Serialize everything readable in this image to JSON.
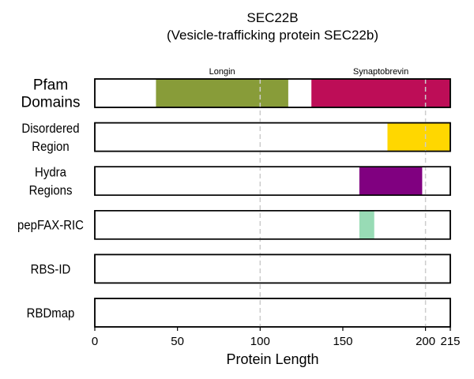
{
  "chart_data": {
    "type": "bar",
    "title": "SEC22B",
    "subtitle": "(Vesicle-trafficking protein SEC22b)",
    "xlabel": "Protein Length",
    "xlim": [
      0,
      215
    ],
    "xticks": [
      0,
      50,
      100,
      150,
      200,
      215
    ],
    "gridlines_x": [
      100,
      200
    ],
    "tracks": [
      {
        "label_lines": [
          "Pfam",
          "Domains"
        ],
        "segments": [
          {
            "name": "Longin",
            "start": 37,
            "end": 117,
            "color": "#889c39"
          },
          {
            "name": "Synaptobrevin",
            "start": 131,
            "end": 215,
            "color": "#bd0d57"
          }
        ]
      },
      {
        "label_lines": [
          "Disordered",
          "Region"
        ],
        "segments": [
          {
            "name": "",
            "start": 177,
            "end": 215,
            "color": "#ffd700"
          }
        ]
      },
      {
        "label_lines": [
          "Hydra",
          "Regions"
        ],
        "segments": [
          {
            "name": "",
            "start": 160,
            "end": 198,
            "color": "#800080"
          }
        ]
      },
      {
        "label_lines": [
          "pepFAX-RIC"
        ],
        "segments": [
          {
            "name": "",
            "start": 160,
            "end": 169,
            "color": "#98dbb5"
          }
        ]
      },
      {
        "label_lines": [
          "RBS-ID"
        ],
        "segments": []
      },
      {
        "label_lines": [
          "RBDmap"
        ],
        "segments": []
      }
    ]
  }
}
